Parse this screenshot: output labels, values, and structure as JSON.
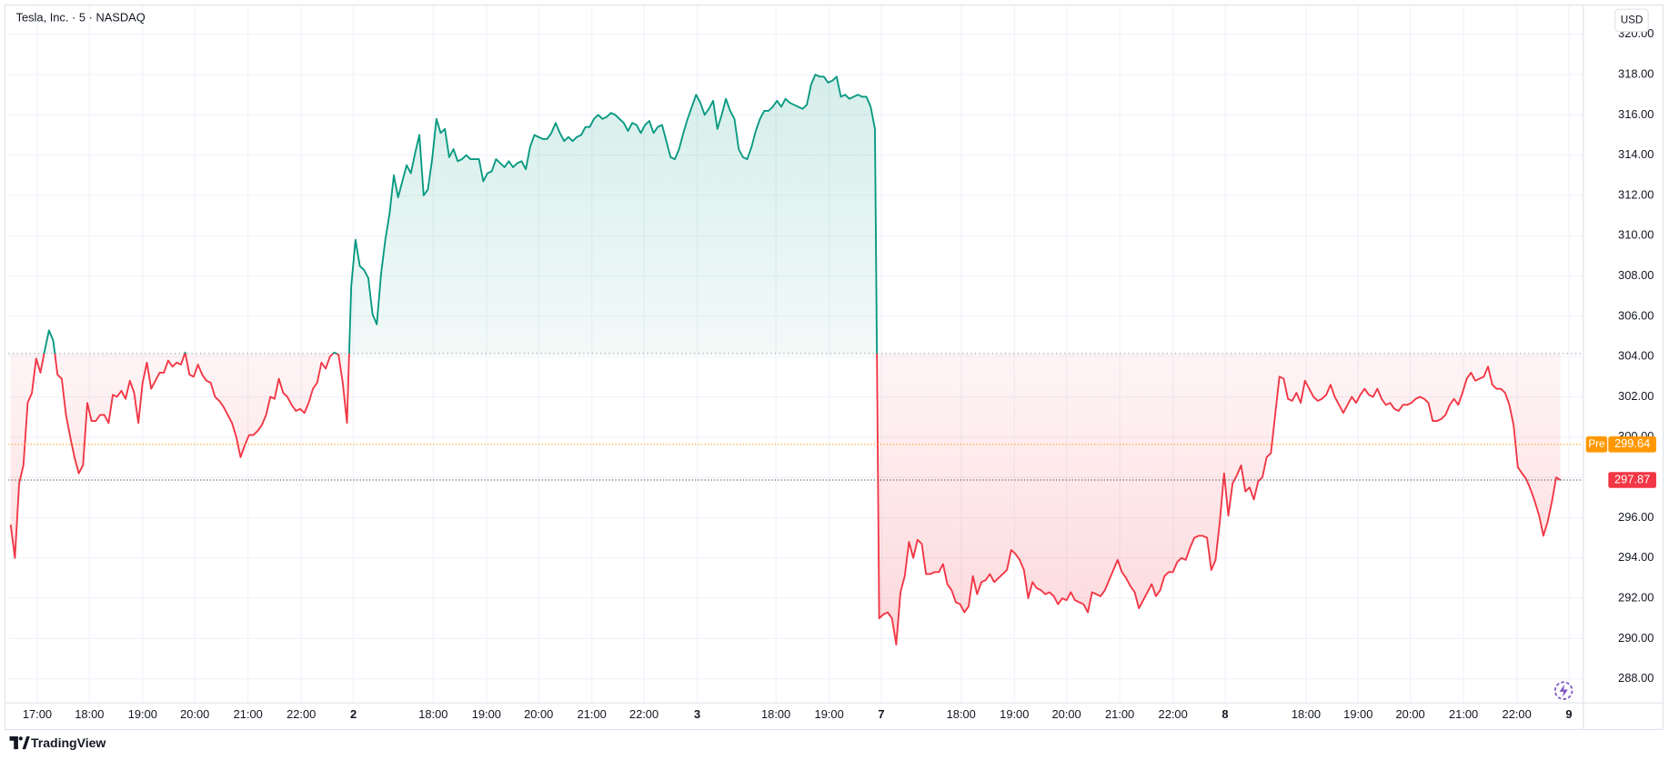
{
  "chart_data": {
    "type": "baseline",
    "title": "Tesla, Inc. · 5 · NASDAQ",
    "currency": "USD",
    "brand": "TradingView",
    "baseline": 304.15,
    "up_color": "#089981",
    "down_color": "#f23645",
    "pre_market": {
      "label": "Pre",
      "value": 299.64,
      "color": "#ff9800"
    },
    "last_price": 297.87,
    "grid": true,
    "values": [
      295.65,
      294.0,
      297.7,
      298.6,
      301.7,
      302.2,
      303.9,
      303.2,
      304.3,
      305.3,
      304.8,
      303.1,
      302.9,
      301.1,
      300.0,
      299.0,
      298.2,
      298.6,
      301.7,
      300.8,
      300.8,
      301.1,
      301.1,
      300.7,
      302.1,
      302.0,
      302.3,
      301.9,
      302.8,
      302.2,
      300.7,
      302.7,
      303.7,
      302.4,
      302.8,
      303.2,
      303.2,
      303.8,
      303.5,
      303.7,
      303.6,
      304.2,
      303.1,
      303.0,
      303.6,
      303.1,
      302.8,
      302.7,
      302.0,
      301.8,
      301.5,
      301.1,
      300.7,
      300.0,
      299.0,
      299.6,
      300.1,
      300.1,
      300.3,
      300.6,
      301.1,
      302.0,
      301.9,
      302.9,
      302.2,
      302.0,
      301.6,
      301.3,
      301.4,
      301.2,
      301.7,
      302.4,
      302.7,
      303.7,
      303.4,
      304.0,
      304.2,
      304.1,
      302.7,
      300.7,
      307.5,
      309.8,
      308.5,
      308.3,
      307.9,
      306.1,
      305.6,
      308.1,
      309.8,
      311.1,
      313.0,
      311.9,
      312.7,
      313.5,
      313.1,
      314.1,
      315.0,
      312.0,
      312.3,
      313.8,
      315.8,
      315.1,
      315.3,
      313.9,
      314.3,
      313.7,
      313.8,
      314.0,
      313.8,
      313.8,
      313.8,
      312.7,
      313.1,
      313.2,
      313.8,
      313.6,
      313.4,
      313.7,
      313.4,
      313.6,
      313.7,
      313.3,
      314.4,
      315.0,
      314.9,
      314.8,
      314.8,
      315.1,
      315.6,
      315.1,
      314.7,
      314.9,
      314.7,
      314.9,
      315.0,
      315.4,
      315.4,
      315.8,
      316.0,
      315.8,
      315.9,
      316.1,
      316.0,
      315.8,
      315.6,
      315.2,
      315.6,
      315.5,
      315.1,
      315.5,
      315.7,
      315.1,
      315.4,
      315.5,
      314.7,
      313.9,
      313.8,
      314.3,
      315.1,
      315.8,
      316.4,
      317.0,
      316.6,
      316.0,
      316.3,
      316.7,
      315.3,
      316.0,
      316.8,
      316.2,
      315.8,
      314.3,
      313.9,
      313.8,
      314.4,
      315.2,
      315.8,
      316.2,
      316.2,
      316.4,
      316.7,
      316.4,
      316.8,
      316.6,
      316.5,
      316.4,
      316.3,
      316.5,
      317.5,
      318.0,
      317.9,
      317.9,
      317.6,
      317.7,
      317.9,
      316.9,
      317.0,
      316.8,
      316.9,
      317.0,
      316.9,
      316.9,
      316.4,
      315.3,
      291.0,
      291.2,
      291.3,
      291.0,
      289.7,
      292.3,
      293.1,
      294.8,
      294.0,
      294.9,
      294.7,
      293.2,
      293.2,
      293.3,
      293.3,
      293.7,
      292.7,
      292.4,
      291.8,
      291.7,
      291.3,
      291.6,
      293.1,
      292.2,
      292.8,
      292.9,
      293.2,
      292.8,
      293.0,
      293.2,
      293.4,
      294.4,
      294.2,
      293.9,
      293.4,
      292.0,
      292.8,
      292.5,
      292.4,
      292.2,
      292.3,
      292.1,
      291.7,
      292.0,
      291.9,
      292.3,
      291.9,
      291.8,
      291.7,
      291.3,
      292.3,
      292.2,
      292.1,
      292.4,
      292.9,
      293.4,
      293.9,
      293.3,
      293.0,
      292.6,
      292.3,
      291.5,
      291.9,
      292.3,
      292.7,
      292.1,
      292.4,
      293.1,
      293.3,
      293.3,
      293.8,
      294.0,
      293.9,
      294.5,
      295.0,
      295.1,
      295.1,
      295.0,
      293.4,
      293.9,
      295.8,
      298.2,
      296.1,
      297.7,
      298.1,
      298.6,
      297.3,
      297.5,
      296.9,
      297.8,
      298.0,
      299.0,
      299.2,
      301.1,
      303.0,
      302.9,
      301.9,
      301.8,
      302.2,
      301.7,
      302.8,
      302.4,
      302.0,
      301.8,
      301.9,
      302.1,
      302.6,
      302.0,
      301.6,
      301.2,
      301.6,
      302.0,
      301.7,
      302.1,
      302.4,
      302.1,
      302.0,
      302.4,
      301.9,
      301.6,
      301.7,
      301.4,
      301.3,
      301.6,
      301.6,
      301.7,
      301.9,
      302.0,
      301.9,
      301.7,
      300.8,
      300.8,
      300.9,
      301.1,
      301.6,
      301.9,
      301.6,
      302.2,
      302.9,
      303.2,
      302.8,
      302.9,
      303.0,
      303.5,
      302.6,
      302.4,
      302.4,
      302.2,
      301.6,
      300.6,
      298.5,
      298.2,
      297.9,
      297.4,
      296.8,
      296.1,
      295.1,
      295.8,
      296.8,
      298.0,
      297.87
    ],
    "xlim": [
      -0.5,
      369.25
    ],
    "xticks": [
      {
        "value": 6.25,
        "label": "17:00"
      },
      {
        "value": 18.5,
        "label": "18:00"
      },
      {
        "value": 31,
        "label": "19:00"
      },
      {
        "value": 43.25,
        "label": "20:00"
      },
      {
        "value": 55.75,
        "label": "21:00"
      },
      {
        "value": 68.25,
        "label": "22:00"
      },
      {
        "value": 80.5,
        "label": "2"
      },
      {
        "value": 99.25,
        "label": "18:00"
      },
      {
        "value": 111.75,
        "label": "19:00"
      },
      {
        "value": 124,
        "label": "20:00"
      },
      {
        "value": 136.5,
        "label": "21:00"
      },
      {
        "value": 148.75,
        "label": "22:00"
      },
      {
        "value": 161.25,
        "label": "3"
      },
      {
        "value": 179.75,
        "label": "18:00"
      },
      {
        "value": 192.25,
        "label": "19:00"
      },
      {
        "value": 204.5,
        "label": "7"
      },
      {
        "value": 223.25,
        "label": "18:00"
      },
      {
        "value": 235.75,
        "label": "19:00"
      },
      {
        "value": 248,
        "label": "20:00"
      },
      {
        "value": 260.5,
        "label": "21:00"
      },
      {
        "value": 273,
        "label": "22:00"
      },
      {
        "value": 285.25,
        "label": "8"
      },
      {
        "value": 304.25,
        "label": "18:00"
      },
      {
        "value": 316.5,
        "label": "19:00"
      },
      {
        "value": 328.75,
        "label": "20:00"
      },
      {
        "value": 341.25,
        "label": "21:00"
      },
      {
        "value": 353.75,
        "label": "22:00"
      },
      {
        "value": 366,
        "label": "9"
      }
    ],
    "ylim": [
      286.83,
      321.43
    ],
    "yticks": [
      {
        "value": 288,
        "label": "288.00"
      },
      {
        "value": 290,
        "label": "290.00"
      },
      {
        "value": 292,
        "label": "292.00"
      },
      {
        "value": 294,
        "label": "294.00"
      },
      {
        "value": 296,
        "label": "296.00"
      },
      {
        "value": 298,
        "label": "298.00"
      },
      {
        "value": 300,
        "label": "300.00"
      },
      {
        "value": 302,
        "label": "302.00"
      },
      {
        "value": 304,
        "label": "304.00"
      },
      {
        "value": 306,
        "label": "306.00"
      },
      {
        "value": 308,
        "label": "308.00"
      },
      {
        "value": 310,
        "label": "310.00"
      },
      {
        "value": 312,
        "label": "312.00"
      },
      {
        "value": 314,
        "label": "314.00"
      },
      {
        "value": 316,
        "label": "316.00"
      },
      {
        "value": 318,
        "label": "318.00"
      },
      {
        "value": 320,
        "label": "320.00"
      }
    ]
  }
}
